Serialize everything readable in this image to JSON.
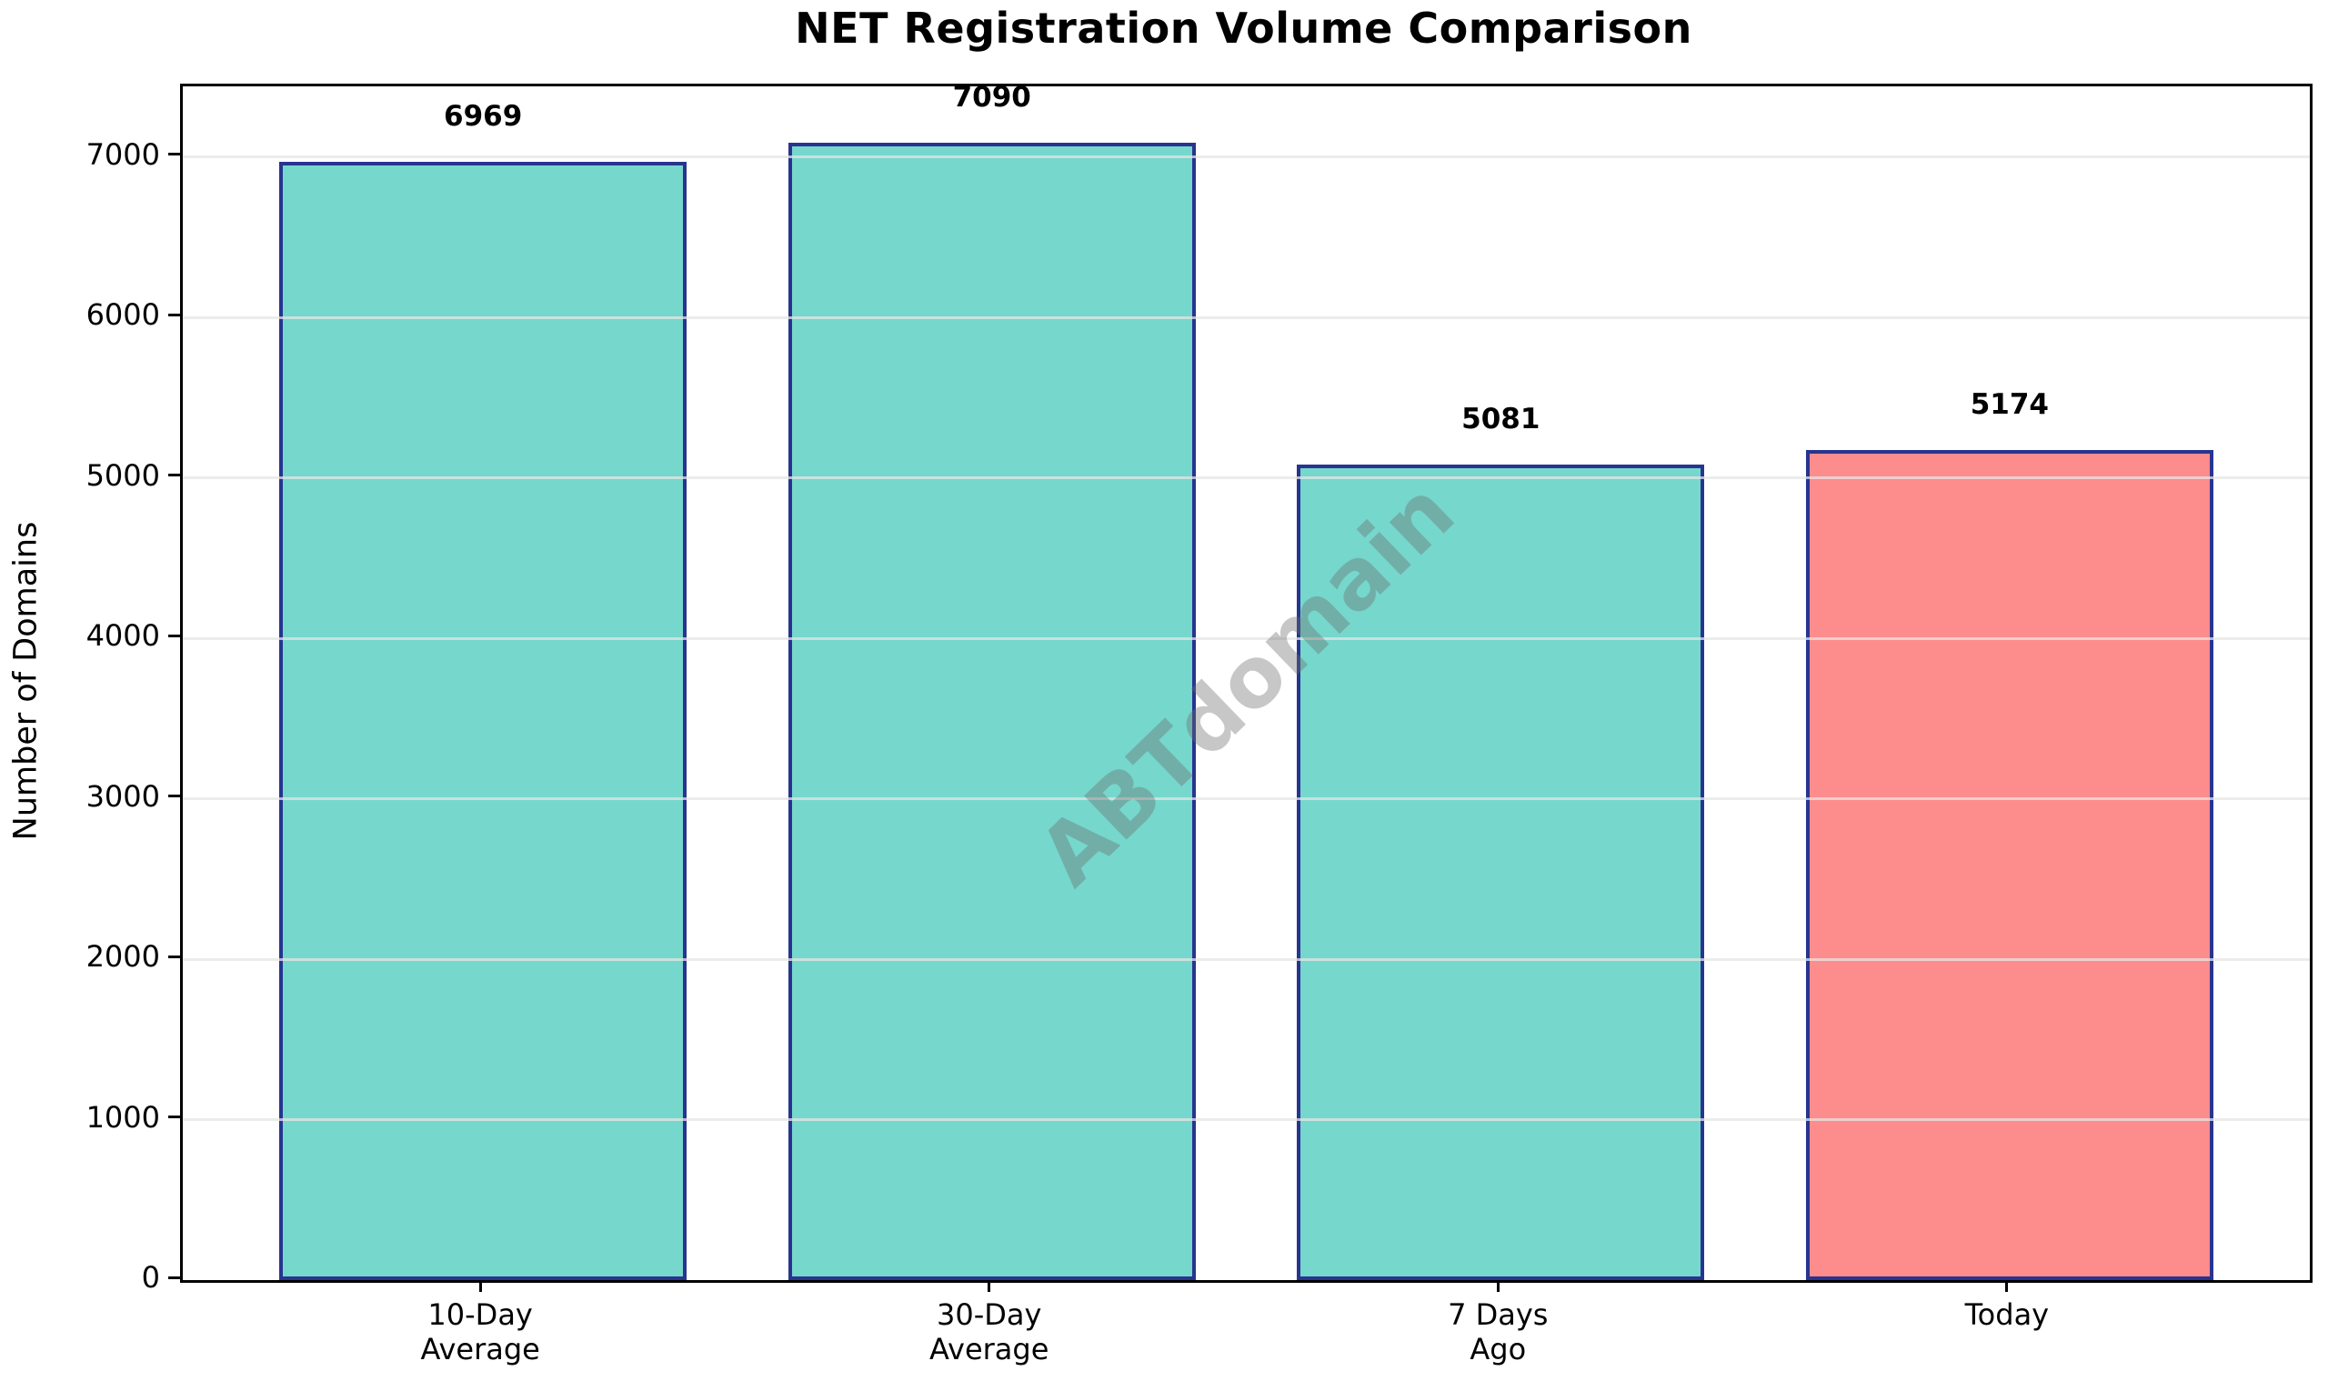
{
  "chart_data": {
    "type": "bar",
    "title": "NET Registration Volume Comparison",
    "ylabel": "Number of Domains",
    "xlabel": "",
    "categories": [
      "10-Day\nAverage",
      "30-Day\nAverage",
      "7 Days\nAgo",
      "Today"
    ],
    "values": [
      6969,
      7090,
      5081,
      5174
    ],
    "value_labels": [
      "6969",
      "7090",
      "5081",
      "5174"
    ],
    "bar_colors": [
      "#76d7cc",
      "#76d7cc",
      "#76d7cc",
      "#fd8c8c"
    ],
    "bar_edge_color": "#28348f",
    "ylim": [
      0,
      7440
    ],
    "yticks": [
      0,
      1000,
      2000,
      3000,
      4000,
      5000,
      6000,
      7000
    ],
    "xlim": [
      -0.59,
      3.59
    ],
    "bar_width": 0.8,
    "grid": "horizontal-over-bars",
    "gridline_color": "#e5e5e5",
    "legend_position": "none",
    "watermark": {
      "text": "ABTdomain",
      "color": "#6e6e6e",
      "rotation_deg": -44
    }
  }
}
